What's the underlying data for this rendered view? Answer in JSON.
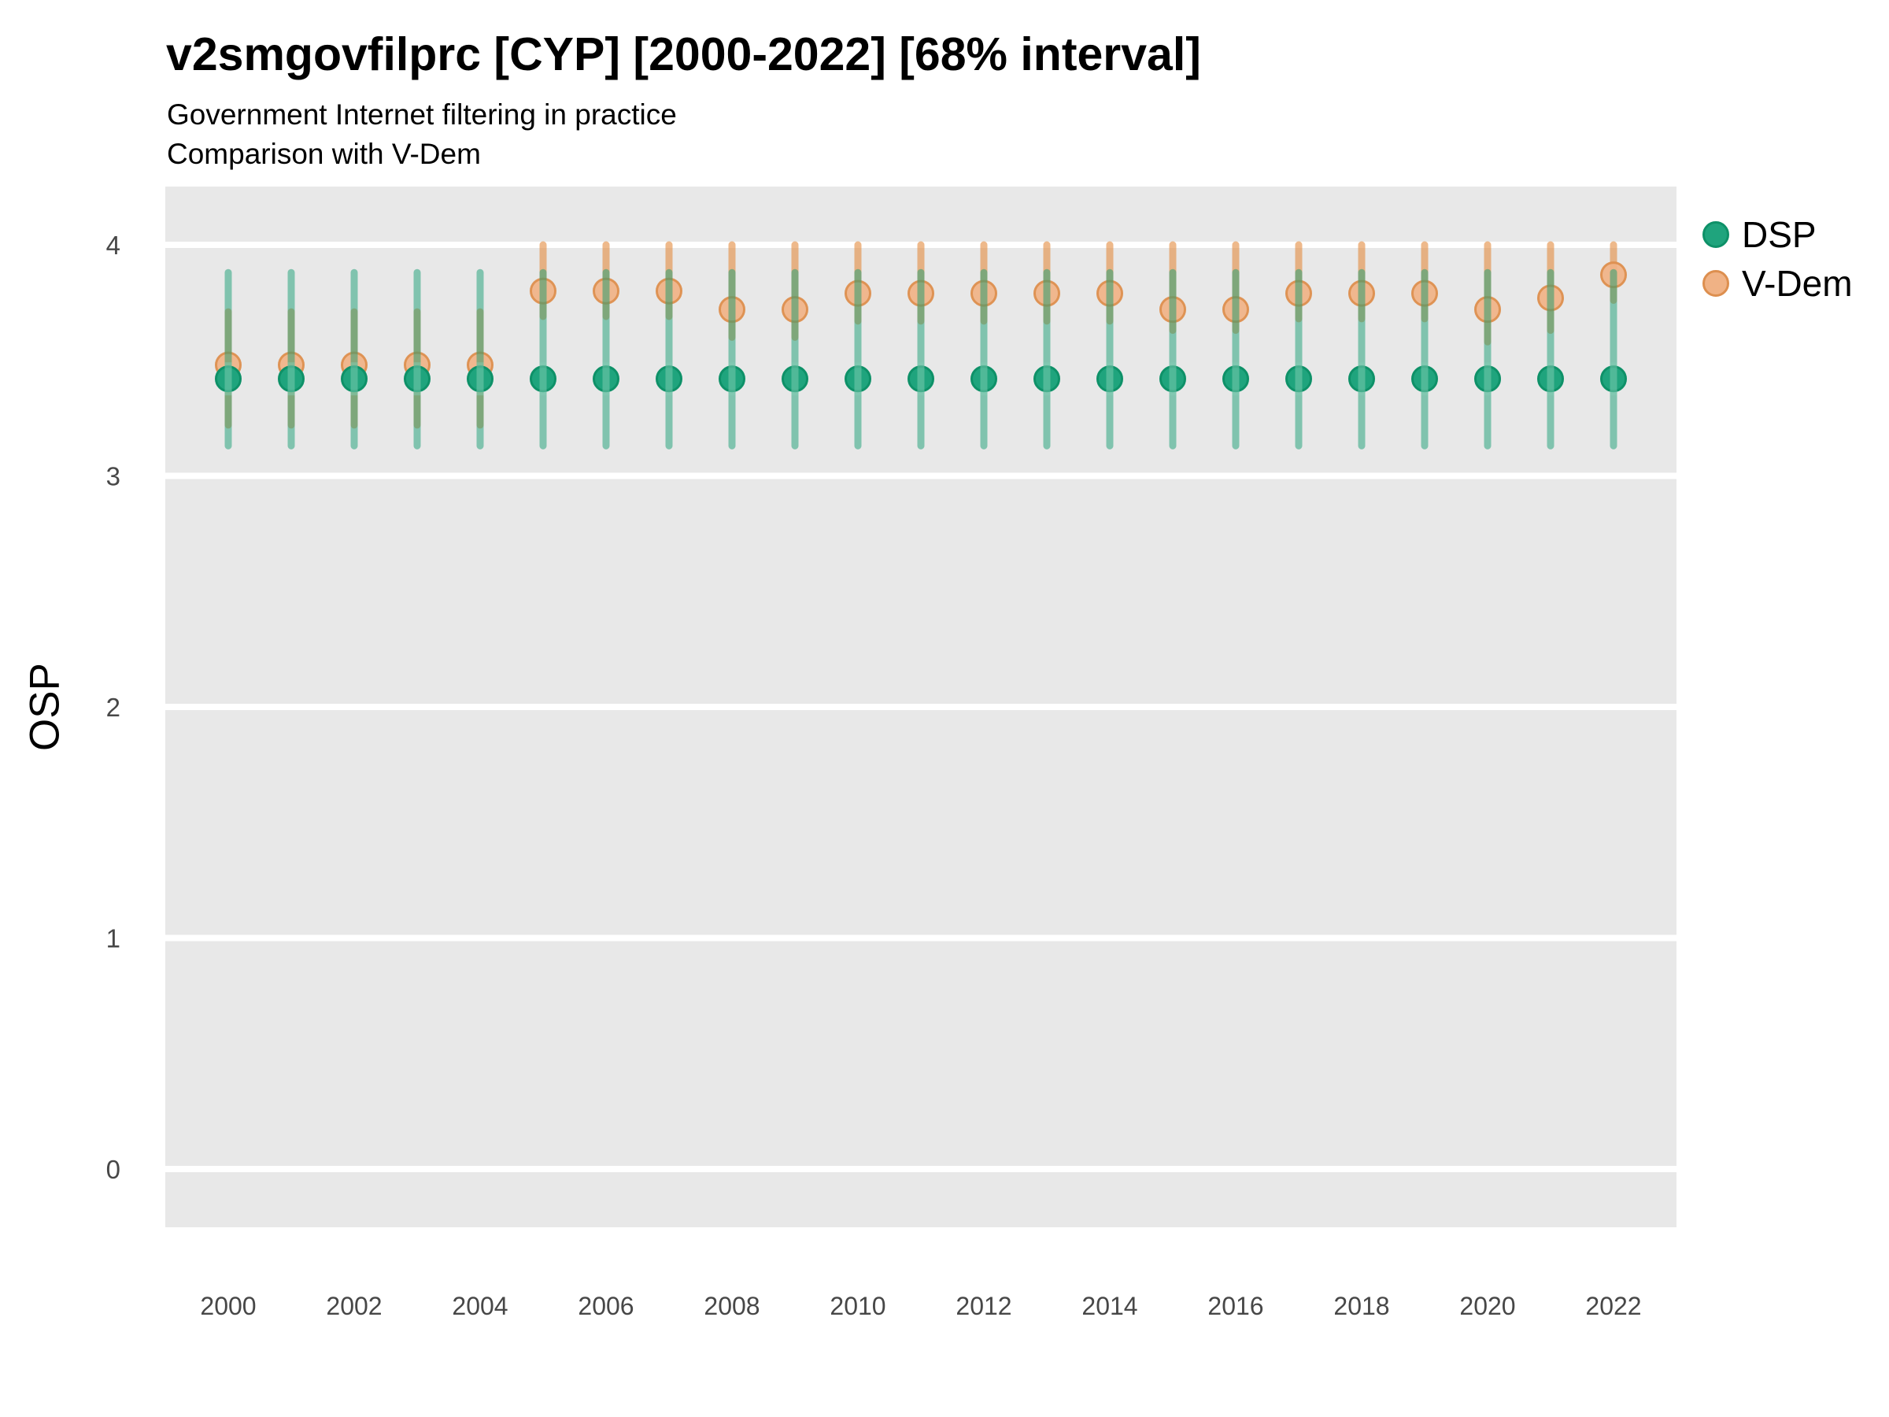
{
  "header": {
    "title": "v2smgovfilprc [CYP] [2000-2022] [68% interval]",
    "subtitle1": "Government Internet filtering in practice",
    "subtitle2": "Comparison with V-Dem"
  },
  "axes": {
    "y_title": "OSP",
    "y_ticks": [
      0,
      1,
      2,
      3,
      4
    ],
    "x_ticks": [
      2000,
      2002,
      2004,
      2006,
      2008,
      2010,
      2012,
      2014,
      2016,
      2018,
      2020,
      2022
    ]
  },
  "legend": {
    "items": [
      {
        "label": "DSP",
        "color": "#1fa47d"
      },
      {
        "label": "V-Dem",
        "color": "#f0b285"
      }
    ]
  },
  "colors": {
    "panel_bg": "#e8e8e8",
    "grid": "#ffffff",
    "tick_text": "#474747",
    "dsp_fill": "#1fa47d",
    "dsp_stroke": "#0e9168",
    "dsp_interval": "rgba(24,158,116,0.5)",
    "dsp_band": "rgba(130,205,180,0.5)",
    "vdem_fill": "rgba(240,178,133,0.92)",
    "vdem_stroke": "rgba(221,143,79,0.95)",
    "vdem_interval": "rgba(226,138,61,0.6)"
  },
  "chart_data": {
    "type": "scatter",
    "title": "v2smgovfilprc [CYP] [2000-2022] [68% interval]",
    "subtitle": "Government Internet filtering in practice — Comparison with V-Dem",
    "xlabel": "",
    "ylabel": "OSP",
    "ylim": [
      0,
      4
    ],
    "grid": "major-horizontal-white-on-gray",
    "legend_position": "right-top",
    "interval": "68%",
    "x": [
      2000,
      2001,
      2002,
      2003,
      2004,
      2005,
      2006,
      2007,
      2008,
      2009,
      2010,
      2011,
      2012,
      2013,
      2014,
      2015,
      2016,
      2017,
      2018,
      2019,
      2020,
      2021,
      2022
    ],
    "series": [
      {
        "name": "DSP",
        "values": [
          3.42,
          3.42,
          3.42,
          3.42,
          3.42,
          3.42,
          3.42,
          3.42,
          3.42,
          3.42,
          3.42,
          3.42,
          3.42,
          3.42,
          3.42,
          3.42,
          3.42,
          3.42,
          3.42,
          3.42,
          3.42,
          3.42,
          3.42
        ],
        "lo": [
          3.13,
          3.13,
          3.13,
          3.13,
          3.13,
          3.13,
          3.13,
          3.13,
          3.13,
          3.13,
          3.13,
          3.13,
          3.13,
          3.13,
          3.13,
          3.13,
          3.13,
          3.13,
          3.13,
          3.13,
          3.13,
          3.13,
          3.13
        ],
        "hi": [
          3.88,
          3.88,
          3.88,
          3.88,
          3.88,
          3.88,
          3.88,
          3.88,
          3.88,
          3.88,
          3.88,
          3.88,
          3.88,
          3.88,
          3.88,
          3.88,
          3.88,
          3.88,
          3.88,
          3.88,
          3.88,
          3.88,
          3.88
        ]
      },
      {
        "name": "V-Dem",
        "values": [
          3.48,
          3.48,
          3.48,
          3.48,
          3.48,
          3.8,
          3.8,
          3.8,
          3.72,
          3.72,
          3.79,
          3.79,
          3.79,
          3.79,
          3.79,
          3.72,
          3.72,
          3.79,
          3.79,
          3.79,
          3.72,
          3.77,
          3.87
        ],
        "lo": [
          3.22,
          3.22,
          3.22,
          3.22,
          3.22,
          3.69,
          3.69,
          3.69,
          3.6,
          3.6,
          3.67,
          3.67,
          3.67,
          3.67,
          3.67,
          3.63,
          3.63,
          3.68,
          3.68,
          3.68,
          3.58,
          3.63,
          3.76
        ],
        "hi": [
          3.71,
          3.71,
          3.71,
          3.71,
          3.71,
          4.0,
          4.0,
          4.0,
          4.0,
          4.0,
          4.0,
          4.0,
          4.0,
          4.0,
          4.0,
          4.0,
          4.0,
          4.0,
          4.0,
          4.0,
          4.0,
          4.0,
          4.0
        ]
      }
    ]
  }
}
